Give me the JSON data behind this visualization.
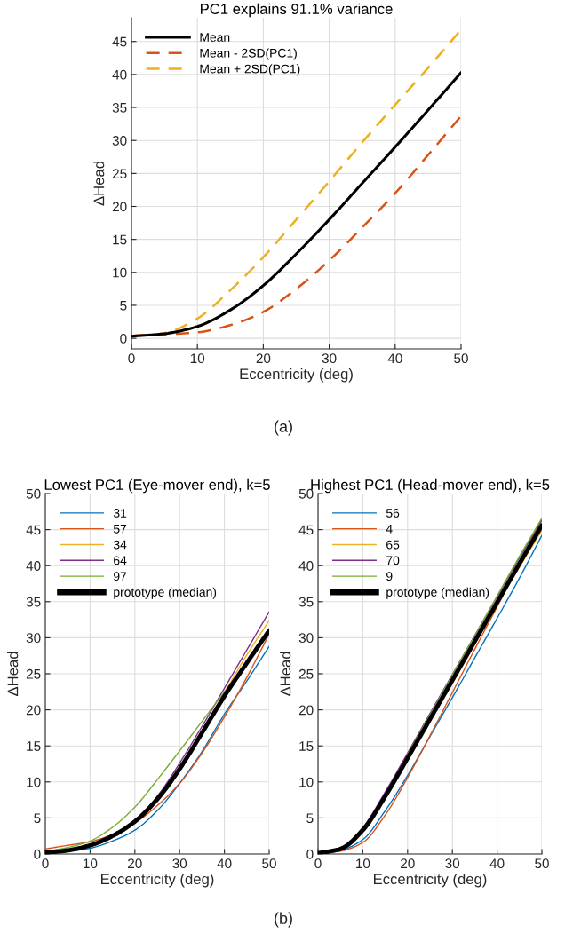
{
  "chart_data": [
    {
      "type": "line",
      "title": "PC1 explains 91.1% variance",
      "xlabel": "Eccentricity (deg)",
      "ylabel": "ΔHead",
      "x": [
        0,
        5,
        10,
        15,
        20,
        25,
        30,
        35,
        40,
        45,
        50
      ],
      "xlim": [
        0,
        50
      ],
      "xticks": [
        0,
        10,
        20,
        30,
        40,
        50
      ],
      "ylim": [
        -1.6,
        48.6
      ],
      "yticks": [
        0,
        5,
        10,
        15,
        20,
        25,
        30,
        35,
        40,
        45
      ],
      "grid": true,
      "legend": "top left",
      "annotations": [
        "(a)"
      ],
      "series": [
        {
          "name": "Mean",
          "color": "#000000",
          "line_style": "solid",
          "values": [
            0.3,
            0.7,
            1.8,
            4.3,
            8,
            12.8,
            18,
            23.5,
            29,
            34.6,
            40.3
          ]
        },
        {
          "name": "Mean - 2SD(PC1)",
          "color": "#d95319",
          "line_style": "dashed",
          "values": [
            0.4,
            0.6,
            0.9,
            2,
            4,
            7.5,
            11.8,
            16.8,
            22,
            27.8,
            33.7
          ]
        },
        {
          "name": "Mean + 2SD(PC1)",
          "color": "#edb120",
          "line_style": "dashed",
          "values": [
            0.3,
            0.8,
            3,
            7.3,
            12.3,
            18,
            23.8,
            29.7,
            35.4,
            41,
            46.8
          ]
        }
      ]
    },
    {
      "type": "line",
      "title": "Lowest PC1 (Eye-mover end), k=5",
      "xlabel": "Eccentricity (deg)",
      "ylabel": "ΔHead",
      "x": [
        0,
        5,
        10,
        15,
        20,
        25,
        30,
        35,
        40,
        45,
        50
      ],
      "xlim": [
        0,
        50
      ],
      "xticks": [
        0,
        10,
        20,
        30,
        40,
        50
      ],
      "ylim": [
        0,
        50
      ],
      "yticks": [
        0,
        5,
        10,
        15,
        20,
        25,
        30,
        35,
        40,
        45,
        50
      ],
      "grid": true,
      "legend": "top left",
      "annotations": [
        "(b)"
      ],
      "series": [
        {
          "name": "31",
          "color": "#0072bd",
          "values": [
            0.2,
            0.4,
            0.8,
            1.8,
            3.3,
            6,
            9.8,
            14.2,
            19.4,
            24,
            28.8
          ]
        },
        {
          "name": "57",
          "color": "#d95319",
          "values": [
            0.7,
            1.2,
            1.7,
            2.7,
            4.3,
            6.7,
            9.8,
            14,
            19,
            24.5,
            30.5
          ]
        },
        {
          "name": "34",
          "color": "#edb120",
          "values": [
            null,
            null,
            null,
            null,
            null,
            null,
            null,
            null,
            22.4,
            27.6,
            32.4
          ]
        },
        {
          "name": "64",
          "color": "#7e2f8e",
          "values": [
            0.2,
            0.6,
            1.3,
            2.6,
            4.6,
            8,
            12.6,
            17.7,
            23,
            28.3,
            33.6
          ]
        },
        {
          "name": "97",
          "color": "#77ac30",
          "values": [
            0.3,
            0.9,
            1.8,
            3.7,
            6.5,
            10.3,
            14.3,
            18.4,
            22.5,
            26.6,
            30.8
          ]
        },
        {
          "name": "prototype (median)",
          "color": "#000000",
          "values": [
            0.2,
            0.5,
            1.2,
            2.5,
            4.5,
            7.6,
            11.8,
            16.8,
            21.9,
            26.5,
            31
          ]
        }
      ]
    },
    {
      "type": "line",
      "title": "Highest PC1 (Head-mover end), k=5",
      "xlabel": "Eccentricity (deg)",
      "ylabel": "ΔHead",
      "x": [
        0,
        5,
        10,
        15,
        20,
        25,
        30,
        35,
        40,
        45,
        50
      ],
      "xlim": [
        0,
        50
      ],
      "xticks": [
        0,
        10,
        20,
        30,
        40,
        50
      ],
      "ylim": [
        0,
        50
      ],
      "yticks": [
        0,
        5,
        10,
        15,
        20,
        25,
        30,
        35,
        40,
        45,
        50
      ],
      "grid": true,
      "legend": "top left",
      "series": [
        {
          "name": "56",
          "color": "#0072bd",
          "values": [
            0.1,
            0.5,
            2,
            6,
            10.9,
            16.3,
            21.7,
            27.2,
            32.7,
            38.3,
            44.2
          ]
        },
        {
          "name": "4",
          "color": "#d95319",
          "values": [
            0.1,
            0.4,
            1.6,
            5.4,
            10.6,
            16.4,
            22.4,
            28.4,
            34.3,
            40.3,
            46.4
          ]
        },
        {
          "name": "65",
          "color": "#edb120",
          "values": [
            null,
            null,
            null,
            null,
            null,
            null,
            null,
            null,
            34.5,
            39.8,
            44.9
          ]
        },
        {
          "name": "70",
          "color": "#7e2f8e",
          "values": [
            0.1,
            0.8,
            3.7,
            8.6,
            14,
            19.5,
            24.9,
            30.3,
            35.7,
            41.1,
            46.3
          ]
        },
        {
          "name": "9",
          "color": "#77ac30",
          "values": [
            null,
            null,
            null,
            null,
            13.8,
            19.3,
            24.8,
            30.3,
            35.8,
            41.3,
            46.6
          ]
        },
        {
          "name": "prototype (median)",
          "color": "#000000",
          "values": [
            0.1,
            0.7,
            3.3,
            8,
            13.3,
            18.7,
            24.1,
            29.5,
            34.9,
            40.3,
            45.6
          ]
        }
      ]
    }
  ]
}
